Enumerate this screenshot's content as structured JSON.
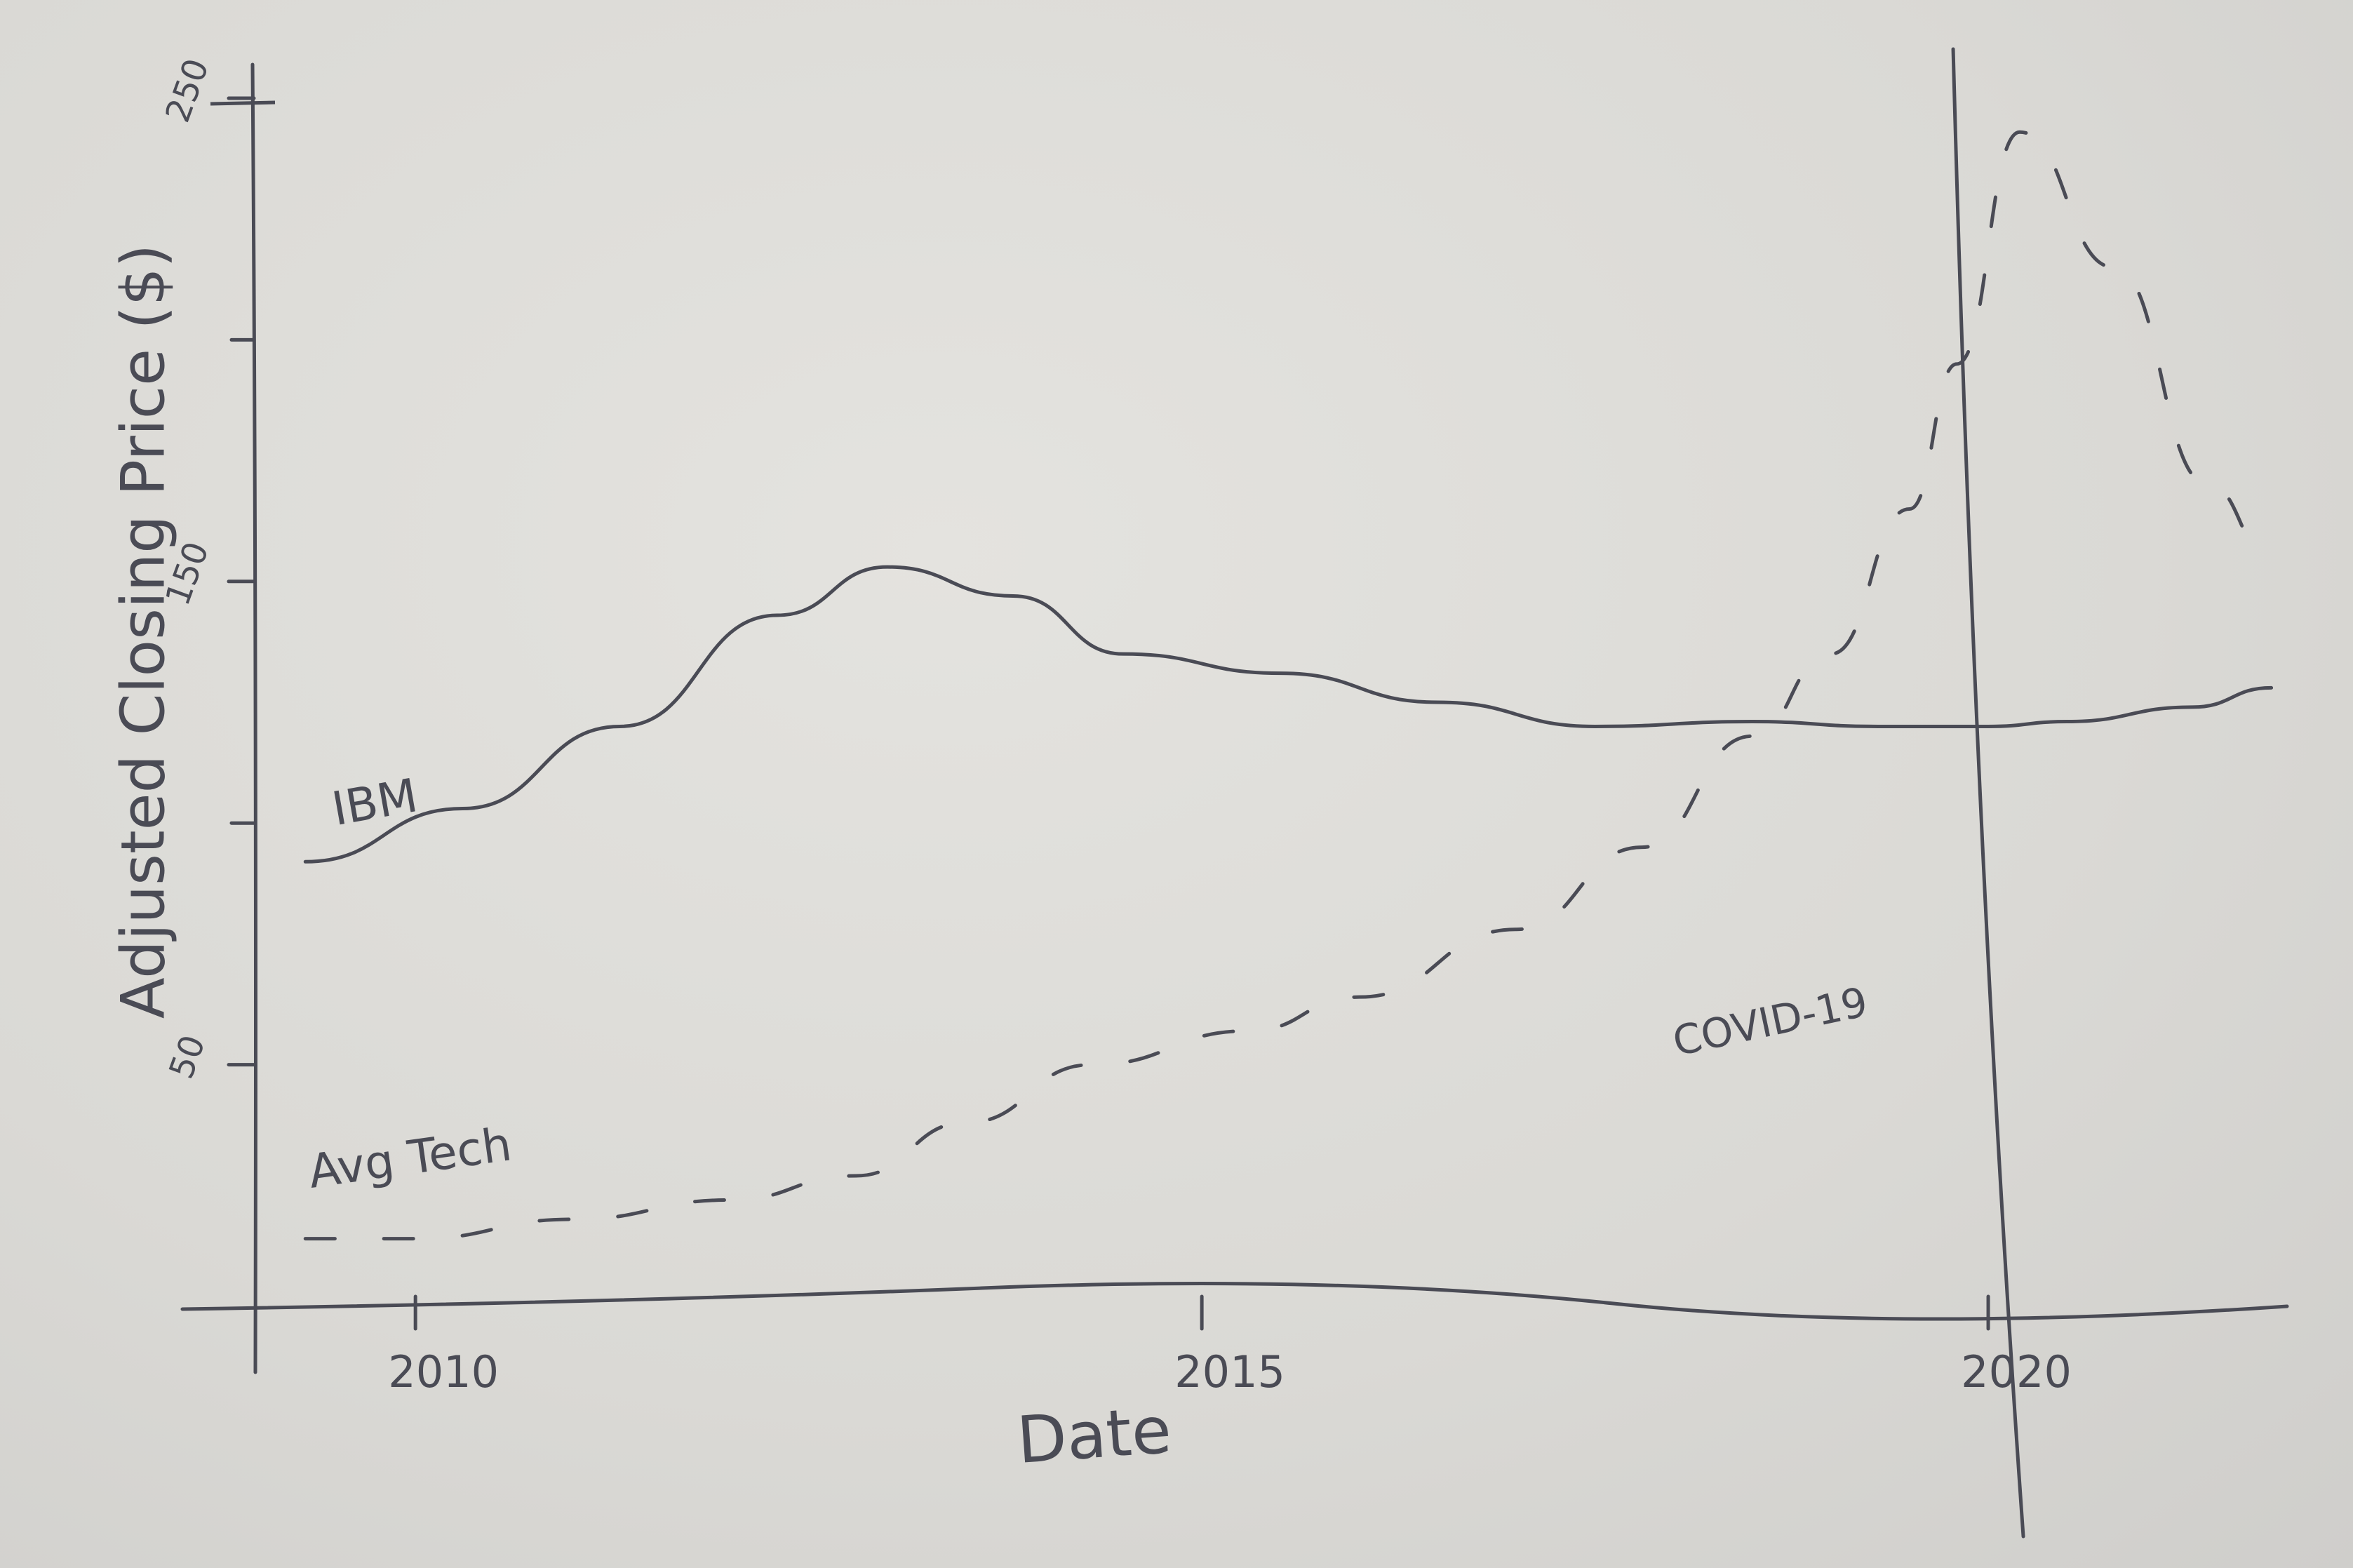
{
  "chart_data": {
    "type": "line",
    "title": "",
    "xlabel": "Date",
    "ylabel": "Adjusted Closing Price ($)",
    "x_tick_labels": [
      "2010",
      "2015",
      "2020"
    ],
    "x_ticks": [
      2010,
      2015,
      2020
    ],
    "y_tick_labels": [
      "50",
      "150",
      "250"
    ],
    "y_ticks": [
      50,
      150,
      250
    ],
    "y_minor_ticks": [
      100,
      200
    ],
    "xlim": [
      2009.0,
      2021.9
    ],
    "ylim": [
      0,
      250
    ],
    "grid": false,
    "series": [
      {
        "name": "IBM",
        "style": "solid",
        "x": [
          2009.3,
          2010.3,
          2011.3,
          2012.3,
          2013.0,
          2013.8,
          2014.5,
          2015.5,
          2016.5,
          2017.5,
          2018.5,
          2019.3,
          2020.0,
          2020.5,
          2021.3,
          2021.8
        ],
        "y": [
          92,
          103,
          120,
          143,
          153,
          147,
          135,
          131,
          125,
          120,
          121,
          120,
          120,
          121,
          124,
          128
        ]
      },
      {
        "name": "Avg Tech",
        "style": "dashed",
        "x": [
          2009.3,
          2010.0,
          2011.0,
          2012.0,
          2012.8,
          2013.5,
          2014.3,
          2015.3,
          2016.0,
          2017.0,
          2017.8,
          2018.5,
          2019.0,
          2019.5,
          2019.8,
          2020.2,
          2020.8,
          2021.4,
          2021.8
        ],
        "y": [
          14,
          14,
          18,
          22,
          27,
          38,
          50,
          57,
          64,
          78,
          95,
          118,
          135,
          165,
          195,
          243,
          215,
          170,
          155
        ]
      }
    ],
    "annotations": [
      {
        "text": "COVID-19",
        "x": 2020.0,
        "type": "vertical-line"
      }
    ]
  }
}
